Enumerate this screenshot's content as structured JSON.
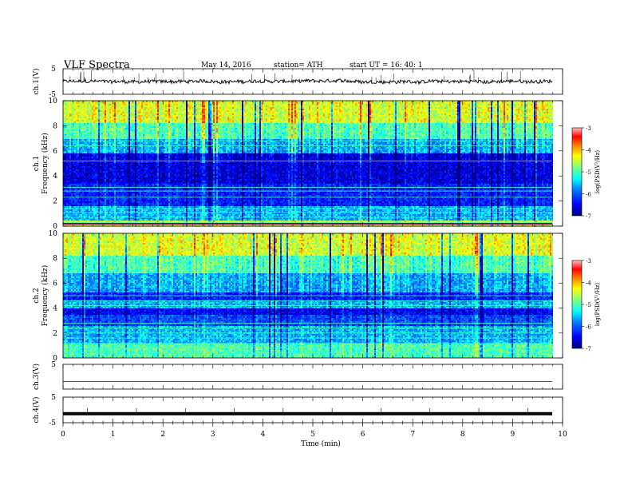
{
  "header": {
    "title": "VLF  Spectra",
    "date": "May 14, 2016",
    "station": "station= ATH",
    "start": "start  UT  =    16: 40: 1"
  },
  "colors": {
    "spectrogram_scale": [
      "#00007f",
      "#0000ff",
      "#007fff",
      "#00ffff",
      "#7fff7f",
      "#ffff00",
      "#ff7f00",
      "#ff0000",
      "#ffb0b0"
    ],
    "trace": "#000000"
  },
  "chart_data": [
    {
      "type": "line",
      "panel": "ch1-waveform",
      "ylabel": "ch.1(V)",
      "ylim": [
        -5,
        5
      ],
      "yticks": [
        5,
        -5
      ],
      "description_values": {
        "baseline": 0,
        "noise_band": [
          -0.8,
          0.8
        ],
        "spikes_max": 3
      },
      "xlim": [
        0,
        10
      ]
    },
    {
      "type": "heatmap",
      "panel": "ch1-spectrogram",
      "ylabel_channel": "ch.1",
      "ylabel": "Frequency  (kHz)",
      "ylim": [
        0,
        10
      ],
      "yticks": [
        "0",
        "2",
        "4",
        "6",
        "8",
        "10"
      ],
      "xlim": [
        0,
        9.8
      ],
      "colorbar": {
        "label": "log(PSD(V²/Hz)",
        "ticks": [
          "-3",
          "-4",
          "-5",
          "-6",
          "-7"
        ],
        "range": [
          -7,
          -3
        ]
      },
      "bands": [
        {
          "f": [
            0,
            0.4
          ],
          "level": -4.5
        },
        {
          "f": [
            0.4,
            1.6
          ],
          "level": -5.6
        },
        {
          "f": [
            1.6,
            3.4
          ],
          "level": -6.3
        },
        {
          "f": [
            3.4,
            5.8
          ],
          "level": -6.6
        },
        {
          "f": [
            5.8,
            7.0
          ],
          "level": -5.6
        },
        {
          "f": [
            7.0,
            8.2
          ],
          "level": -5.0
        },
        {
          "f": [
            8.2,
            10
          ],
          "level": -4.4
        }
      ],
      "lines_khz": [
        0.3,
        0.7,
        1.1,
        1.4,
        2.3,
        2.8,
        3.1,
        5.2,
        6.4,
        6.8
      ]
    },
    {
      "type": "heatmap",
      "panel": "ch2-spectrogram",
      "ylabel_channel": "ch.2",
      "ylabel": "Frequency  (kHz)",
      "ylim": [
        0,
        10
      ],
      "yticks": [
        "0",
        "2",
        "4",
        "6",
        "8",
        "10"
      ],
      "xlim": [
        0,
        9.8
      ],
      "colorbar": {
        "label": "log(PSD(V²/Hz)",
        "ticks": [
          "-3",
          "-4",
          "-5",
          "-6",
          "-7"
        ],
        "range": [
          -7,
          -3
        ]
      },
      "bands": [
        {
          "f": [
            0,
            1.2
          ],
          "level": -5.0
        },
        {
          "f": [
            1.2,
            2.6
          ],
          "level": -5.6
        },
        {
          "f": [
            2.6,
            3.4
          ],
          "level": -6.1
        },
        {
          "f": [
            3.4,
            4.0
          ],
          "level": -6.5
        },
        {
          "f": [
            4.0,
            4.6
          ],
          "level": -5.6
        },
        {
          "f": [
            4.6,
            5.2
          ],
          "level": -6.3
        },
        {
          "f": [
            5.2,
            6.8
          ],
          "level": -5.6
        },
        {
          "f": [
            6.8,
            8.2
          ],
          "level": -5.0
        },
        {
          "f": [
            8.2,
            10
          ],
          "level": -4.4
        }
      ],
      "lines_khz": [
        0.4,
        0.8,
        1.2,
        1.6,
        2.0,
        2.4,
        2.8,
        4.2,
        4.6,
        5.0
      ]
    },
    {
      "type": "line",
      "panel": "ch3-waveform",
      "ylabel": "ch.3(V)",
      "ylim": [
        -5,
        5
      ],
      "yticks": [
        5
      ],
      "baseline": -2
    },
    {
      "type": "line",
      "panel": "ch4-waveform",
      "ylabel": "ch.4(V)",
      "ylim": [
        -5,
        5
      ],
      "yticks": [
        5,
        -5
      ],
      "baseline": -1.5
    }
  ],
  "xaxis": {
    "label": "Time  (min)",
    "range": [
      0,
      10
    ],
    "ticks": [
      "0",
      "1",
      "2",
      "3",
      "4",
      "5",
      "6",
      "7",
      "8",
      "9",
      "10"
    ]
  }
}
